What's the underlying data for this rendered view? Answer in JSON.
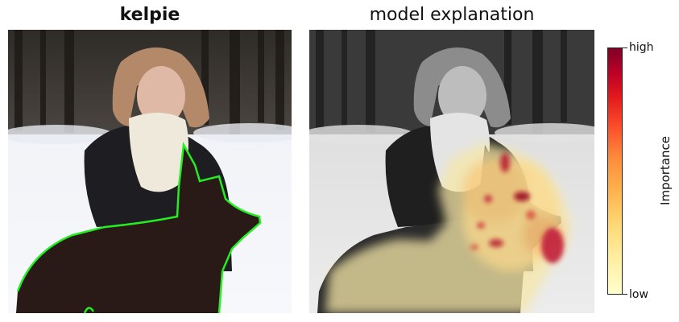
{
  "left_panel": {
    "title": "kelpie"
  },
  "right_panel": {
    "title": "model explanation"
  },
  "colorbar": {
    "label": "Importance",
    "high_label": "high",
    "low_label": "low",
    "colors": [
      "#ffffcc",
      "#ffeda0",
      "#fed976",
      "#feb24c",
      "#fd8d3c",
      "#fc4e2a",
      "#e31a1c",
      "#bd0026",
      "#800026"
    ]
  },
  "segmentation_outline_color": "#22ee22"
}
